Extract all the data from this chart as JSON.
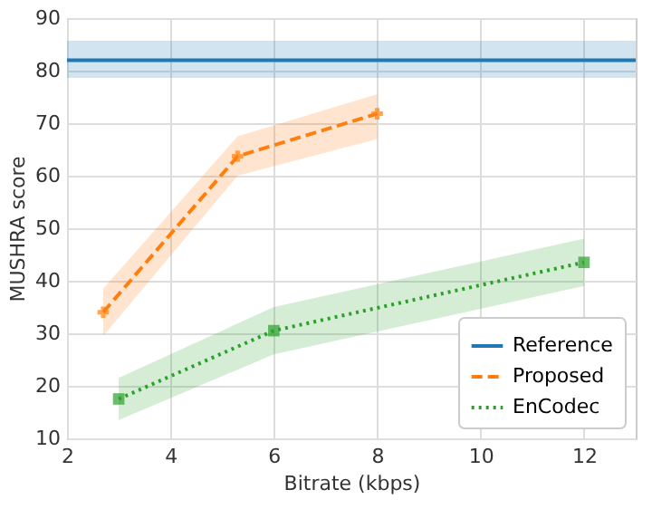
{
  "chart_data": {
    "type": "line",
    "xlabel": "Bitrate (kbps)",
    "ylabel": "MUSHRA score",
    "xlim": [
      2,
      13
    ],
    "xticks": [
      2,
      4,
      6,
      8,
      10,
      12
    ],
    "ylim": [
      10,
      90
    ],
    "yticks": [
      10,
      20,
      30,
      40,
      50,
      60,
      70,
      80,
      90
    ],
    "grid": true,
    "legend": "bottom right",
    "series": [
      {
        "name": "Reference",
        "color": "#1f77b4",
        "line_style": "solid",
        "marker": "none",
        "x": [
          2,
          13
        ],
        "values": [
          82,
          82
        ],
        "lower": [
          78.6,
          78.6
        ],
        "upper": [
          85.7,
          85.7
        ]
      },
      {
        "name": "Proposed",
        "color": "#ff7f0e",
        "line_style": "dashed",
        "marker": "cross",
        "x": [
          2.7,
          5.3,
          8
        ],
        "values": [
          34,
          63.7,
          71.8
        ],
        "lower": [
          29.5,
          60,
          67
        ],
        "upper": [
          38.5,
          67.5,
          75.5
        ]
      },
      {
        "name": "EnCodec",
        "color": "#2ca02c",
        "line_style": "dotted",
        "marker": "square",
        "x": [
          3,
          6,
          12
        ],
        "values": [
          17.5,
          30.5,
          43.5
        ],
        "lower": [
          13.5,
          26,
          39
        ],
        "upper": [
          21.5,
          35,
          48
        ]
      }
    ]
  }
}
